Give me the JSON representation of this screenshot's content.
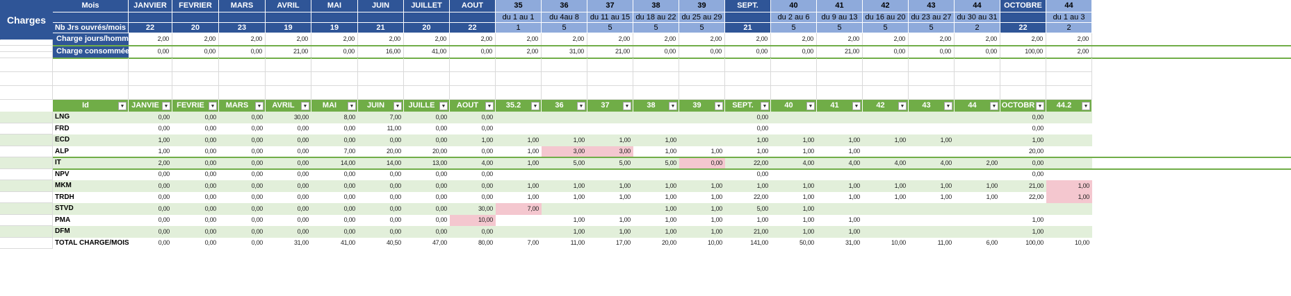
{
  "sheet": {
    "title": "Charges",
    "colors": {
      "header_blue": "#2f5597",
      "week_blue": "#8eaadb",
      "table_green": "#70ad47",
      "band_green": "#e2efda",
      "alert_pink": "#f4c7cf"
    },
    "label_mois": "Mois",
    "label_nb_jrs": "Nb Jrs ouvrés/mois",
    "label_charge_jours": "Charge jours/homme",
    "label_charge_consommee": "Charge consommée",
    "columns": [
      {
        "top": "JANVIER",
        "sub": "",
        "days": "22",
        "type": "month"
      },
      {
        "top": "FEVRIER",
        "sub": "",
        "days": "20",
        "type": "month"
      },
      {
        "top": "MARS",
        "sub": "",
        "days": "23",
        "type": "month"
      },
      {
        "top": "AVRIL",
        "sub": "",
        "days": "19",
        "type": "month"
      },
      {
        "top": "MAI",
        "sub": "",
        "days": "19",
        "type": "month"
      },
      {
        "top": "JUIN",
        "sub": "",
        "days": "21",
        "type": "month"
      },
      {
        "top": "JUILLET",
        "sub": "",
        "days": "20",
        "type": "month"
      },
      {
        "top": "AOUT",
        "sub": "",
        "days": "22",
        "type": "month"
      },
      {
        "top": "35",
        "sub": "du 1 au 1",
        "days": "1",
        "type": "week"
      },
      {
        "top": "36",
        "sub": "du 4au 8",
        "days": "5",
        "type": "week"
      },
      {
        "top": "37",
        "sub": "du 11 au 15",
        "days": "5",
        "type": "week"
      },
      {
        "top": "38",
        "sub": "du 18 au 22",
        "days": "5",
        "type": "week"
      },
      {
        "top": "39",
        "sub": "du 25 au 29",
        "days": "5",
        "type": "week"
      },
      {
        "top": "SEPT.",
        "sub": "",
        "days": "21",
        "type": "month"
      },
      {
        "top": "40",
        "sub": "du 2 au 6",
        "days": "5",
        "type": "week"
      },
      {
        "top": "41",
        "sub": "du 9 au 13",
        "days": "5",
        "type": "week"
      },
      {
        "top": "42",
        "sub": "du 16 au 20",
        "days": "5",
        "type": "week"
      },
      {
        "top": "43",
        "sub": "du 23 au 27",
        "days": "5",
        "type": "week"
      },
      {
        "top": "44",
        "sub": "du 30 au 31",
        "days": "2",
        "type": "week"
      },
      {
        "top": "OCTOBRE",
        "sub": "",
        "days": "22",
        "type": "month"
      },
      {
        "top": "44",
        "sub": "du 1 au 3",
        "days": "2",
        "type": "week"
      }
    ],
    "charge_jours_row": [
      "2,00",
      "2,00",
      "2,00",
      "2,00",
      "2,00",
      "2,00",
      "2,00",
      "2,00",
      "2,00",
      "2,00",
      "2,00",
      "2,00",
      "2,00",
      "2,00",
      "2,00",
      "2,00",
      "2,00",
      "2,00",
      "2,00",
      "2,00",
      "2,00"
    ],
    "charge_consommee_row": [
      "0,00",
      "0,00",
      "0,00",
      "21,00",
      "0,00",
      "16,00",
      "41,00",
      "0,00",
      "2,00",
      "31,00",
      "21,00",
      "0,00",
      "0,00",
      "0,00",
      "0,00",
      "21,00",
      "0,00",
      "0,00",
      "0,00",
      "100,00",
      "2,00"
    ]
  },
  "table": {
    "id_header": "Id",
    "headers": [
      "JANVIE",
      "FEVRIE",
      "MARS",
      "AVRIL",
      "MAI",
      "JUIN",
      "JUILLE",
      "AOUT",
      "35.2",
      "36",
      "37",
      "38",
      "39",
      "SEPT.",
      "40",
      "41",
      "42",
      "43",
      "44",
      "OCTOBR",
      "44.2"
    ],
    "rows": [
      {
        "id": "LNG",
        "cells": [
          "0,00",
          "0,00",
          "0,00",
          "30,00",
          "8,00",
          "7,00",
          "0,00",
          "0,00",
          "",
          "",
          "",
          "",
          "",
          "0,00",
          "",
          "",
          "",
          "",
          "",
          "0,00",
          ""
        ]
      },
      {
        "id": "FRD",
        "cells": [
          "0,00",
          "0,00",
          "0,00",
          "0,00",
          "0,00",
          "11,00",
          "0,00",
          "0,00",
          "",
          "",
          "",
          "",
          "",
          "0,00",
          "",
          "",
          "",
          "",
          "",
          "0,00",
          ""
        ]
      },
      {
        "id": "ECD",
        "cells": [
          "1,00",
          "0,00",
          "0,00",
          "0,00",
          "0,00",
          "0,00",
          "0,00",
          "1,00",
          "1,00",
          "1,00",
          "1,00",
          "1,00",
          "",
          "1,00",
          "1,00",
          "1,00",
          "1,00",
          "1,00",
          "",
          "1,00",
          ""
        ]
      },
      {
        "id": "ALP",
        "cells": [
          "1,00",
          "0,00",
          "0,00",
          "0,00",
          "7,00",
          "20,00",
          "20,00",
          "0,00",
          "1,00",
          "3,00",
          "3,00",
          "1,00",
          "1,00",
          "1,00",
          "1,00",
          "1,00",
          "",
          "",
          "",
          "20,00",
          ""
        ]
      },
      {
        "id": "IT",
        "cells": [
          "2,00",
          "0,00",
          "0,00",
          "0,00",
          "14,00",
          "14,00",
          "13,00",
          "4,00",
          "1,00",
          "5,00",
          "5,00",
          "5,00",
          "0,00",
          "22,00",
          "4,00",
          "4,00",
          "4,00",
          "4,00",
          "2,00",
          "0,00",
          ""
        ]
      },
      {
        "id": "NPV",
        "cells": [
          "0,00",
          "0,00",
          "0,00",
          "0,00",
          "0,00",
          "0,00",
          "0,00",
          "0,00",
          "",
          "",
          "",
          "",
          "",
          "0,00",
          "",
          "",
          "",
          "",
          "",
          "0,00",
          ""
        ]
      },
      {
        "id": "MKM",
        "cells": [
          "0,00",
          "0,00",
          "0,00",
          "0,00",
          "0,00",
          "0,00",
          "0,00",
          "0,00",
          "1,00",
          "1,00",
          "1,00",
          "1,00",
          "1,00",
          "1,00",
          "1,00",
          "1,00",
          "1,00",
          "1,00",
          "1,00",
          "21,00",
          "1,00"
        ]
      },
      {
        "id": "TRDH",
        "cells": [
          "0,00",
          "0,00",
          "0,00",
          "0,00",
          "0,00",
          "0,00",
          "0,00",
          "0,00",
          "1,00",
          "1,00",
          "1,00",
          "1,00",
          "1,00",
          "22,00",
          "1,00",
          "1,00",
          "1,00",
          "1,00",
          "1,00",
          "22,00",
          "1,00"
        ]
      },
      {
        "id": "STVD",
        "cells": [
          "0,00",
          "0,00",
          "0,00",
          "0,00",
          "0,00",
          "0,00",
          "0,00",
          "30,00",
          "7,00",
          "",
          "",
          "1,00",
          "1,00",
          "5,00",
          "1,00",
          "",
          "",
          "",
          "",
          "",
          ""
        ]
      },
      {
        "id": "PMA",
        "cells": [
          "0,00",
          "0,00",
          "0,00",
          "0,00",
          "0,00",
          "0,00",
          "0,00",
          "10,00",
          "",
          "1,00",
          "1,00",
          "1,00",
          "1,00",
          "1,00",
          "1,00",
          "1,00",
          "",
          "",
          "",
          "1,00",
          ""
        ]
      },
      {
        "id": "DFM",
        "cells": [
          "0,00",
          "0,00",
          "0,00",
          "0,00",
          "0,00",
          "0,00",
          "0,00",
          "0,00",
          "",
          "1,00",
          "1,00",
          "1,00",
          "1,00",
          "21,00",
          "1,00",
          "1,00",
          "",
          "",
          "",
          "1,00",
          ""
        ]
      },
      {
        "id": "TOTAL CHARGE/MOIS",
        "cells": [
          "0,00",
          "0,00",
          "0,00",
          "31,00",
          "41,00",
          "40,50",
          "47,00",
          "80,00",
          "7,00",
          "11,00",
          "17,00",
          "20,00",
          "10,00",
          "141,00",
          "50,00",
          "31,00",
          "10,00",
          "11,00",
          "6,00",
          "100,00",
          "10,00"
        ]
      }
    ]
  }
}
